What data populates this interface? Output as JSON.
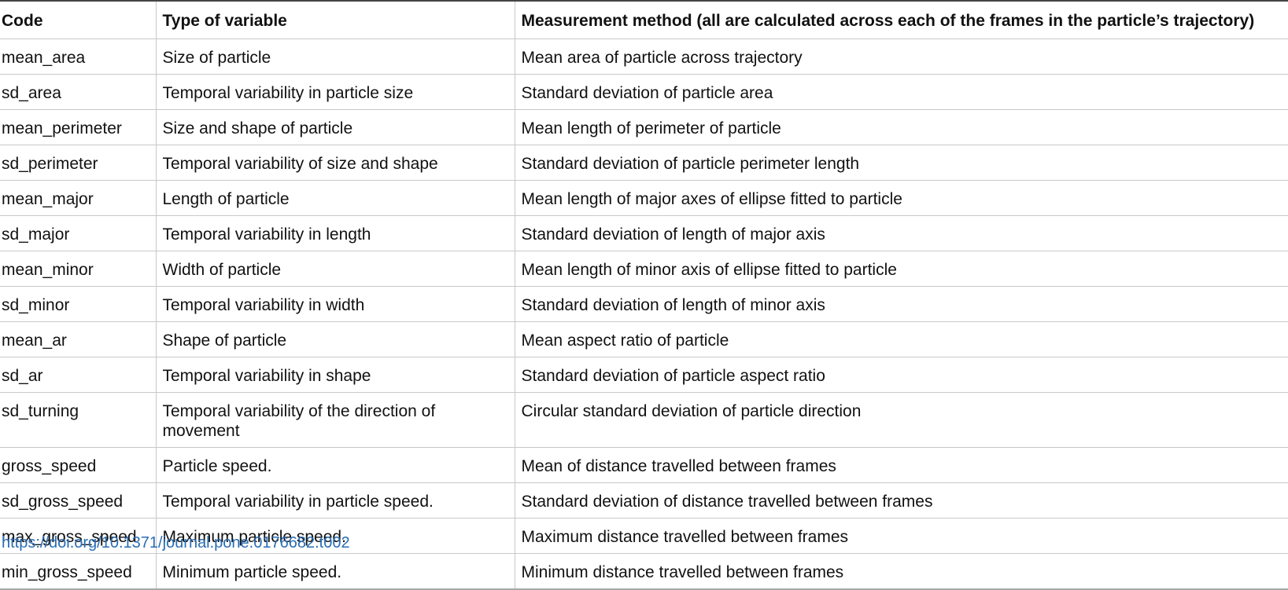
{
  "table": {
    "headers": [
      "Code",
      "Type of variable",
      "Measurement method (all are calculated across each of the frames in the particle’s trajectory)"
    ],
    "rows": [
      [
        "mean_area",
        "Size of particle",
        "Mean area of particle across trajectory"
      ],
      [
        "sd_area",
        "Temporal variability in particle size",
        "Standard deviation of particle area"
      ],
      [
        "mean_perimeter",
        "Size and shape of particle",
        "Mean length of perimeter of particle"
      ],
      [
        "sd_perimeter",
        "Temporal variability of size and shape",
        "Standard deviation of particle perimeter length"
      ],
      [
        "mean_major",
        "Length of particle",
        "Mean length of major axes of ellipse fitted to particle"
      ],
      [
        "sd_major",
        "Temporal variability in length",
        "Standard deviation of length of major axis"
      ],
      [
        "mean_minor",
        "Width of particle",
        "Mean length of minor axis of ellipse fitted to particle"
      ],
      [
        "sd_minor",
        "Temporal variability in width",
        "Standard deviation of length of minor axis"
      ],
      [
        "mean_ar",
        "Shape of particle",
        "Mean aspect ratio of particle"
      ],
      [
        "sd_ar",
        "Temporal variability in shape",
        "Standard deviation of particle aspect ratio"
      ],
      [
        "sd_turning",
        "Temporal variability of the direction of movement",
        "Circular standard deviation of particle direction"
      ],
      [
        "gross_speed",
        "Particle speed.",
        "Mean of distance travelled between frames"
      ],
      [
        "sd_gross_speed",
        "Temporal variability in particle speed.",
        "Standard deviation of distance travelled between frames"
      ],
      [
        "max_gross_speed",
        "Maximum particle speed.",
        "Maximum distance travelled between frames"
      ],
      [
        "min_gross_speed",
        "Minimum particle speed.",
        "Minimum distance travelled between frames"
      ]
    ]
  },
  "doi_link": "https://doi.org/10.1371/journal.pone.0176682.t002",
  "colors": {
    "link": "#2a6db4",
    "rule": "#c8c8c8",
    "text": "#111111"
  }
}
